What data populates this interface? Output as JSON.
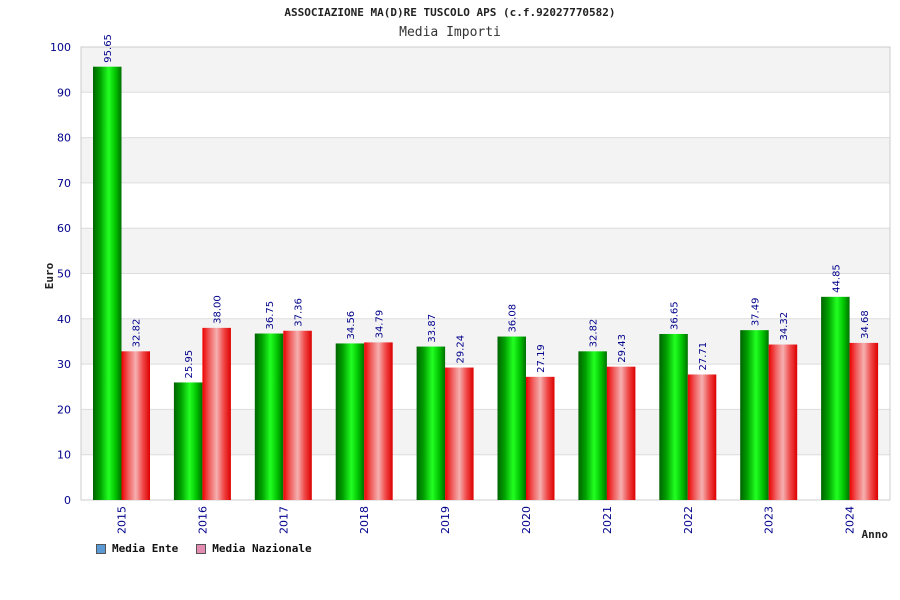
{
  "header": {
    "title": "ASSOCIAZIONE MA(D)RE TUSCOLO APS (c.f.92027770582)",
    "subtitle": "Media Importi"
  },
  "legend": {
    "items": [
      {
        "label": "Media Ente",
        "color": "#5b9bd5"
      },
      {
        "label": "Media Nazionale",
        "color": "#e38bb0"
      }
    ]
  },
  "chart_data": {
    "type": "bar",
    "title": "ASSOCIAZIONE MA(D)RE TUSCOLO APS (c.f.92027770582)",
    "subtitle": "Media Importi",
    "xlabel": "Anno",
    "ylabel": "Euro",
    "ylim": [
      0,
      100
    ],
    "yticks": [
      0,
      10,
      20,
      30,
      40,
      50,
      60,
      70,
      80,
      90,
      100
    ],
    "grid": true,
    "legend_position": "bottom-left",
    "categories": [
      "2015",
      "2016",
      "2017",
      "2018",
      "2019",
      "2020",
      "2021",
      "2022",
      "2023",
      "2024"
    ],
    "series": [
      {
        "name": "Media Ente",
        "color": "#00c000",
        "values": [
          95.65,
          25.95,
          36.75,
          34.56,
          33.87,
          36.08,
          32.82,
          36.65,
          37.49,
          44.85
        ],
        "labels": [
          "95.65",
          "25.95",
          "36.75",
          "34.56",
          "33.87",
          "36.08",
          "32.82",
          "36.65",
          "37.49",
          "44.85"
        ]
      },
      {
        "name": "Media Nazionale",
        "color": "#ee0000",
        "values": [
          32.82,
          38.0,
          37.36,
          34.79,
          29.24,
          27.19,
          29.43,
          27.71,
          34.32,
          34.68
        ],
        "labels": [
          "32.82",
          "38.00",
          "37.36",
          "34.79",
          "29.24",
          "27.19",
          "29.43",
          "27.71",
          "34.32",
          "34.68"
        ]
      }
    ]
  }
}
